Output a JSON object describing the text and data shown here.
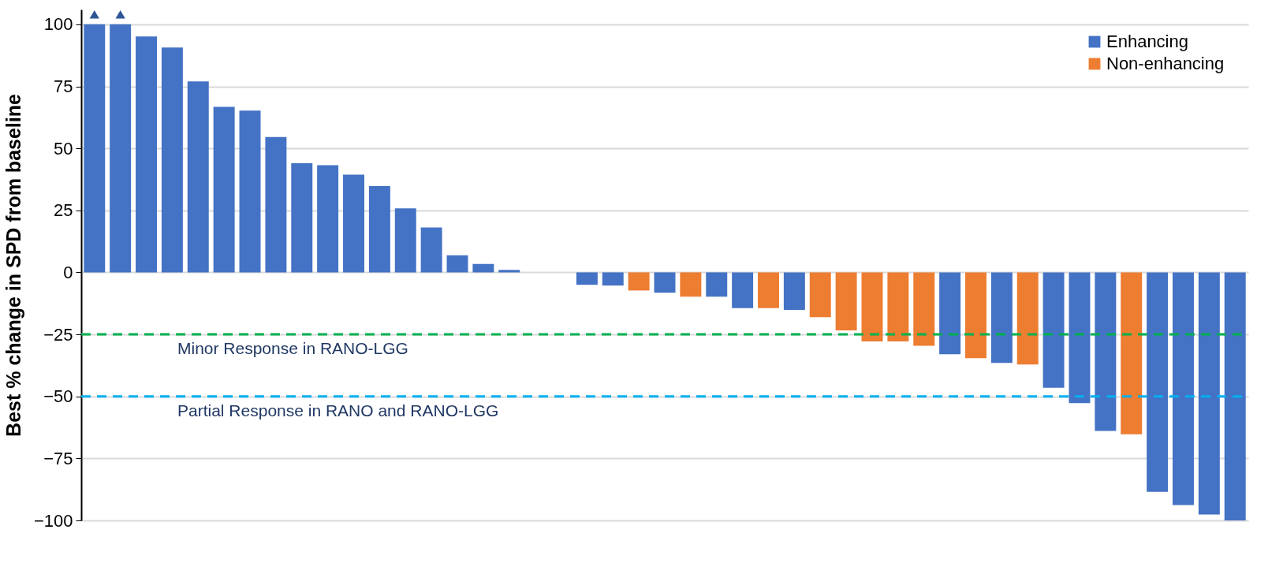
{
  "chart_data": {
    "type": "bar",
    "ylabel": "Best % change in SPD from baseline",
    "categories": [
      null,
      null,
      null,
      null,
      null,
      null,
      null,
      null,
      null,
      null,
      null,
      null,
      null,
      null,
      null,
      null,
      null,
      null,
      null,
      null,
      null,
      null,
      null,
      null,
      null,
      null,
      null,
      null,
      null,
      null,
      null,
      null,
      null,
      null,
      null,
      null,
      null,
      null,
      null,
      null,
      null,
      null,
      null,
      null,
      null
    ],
    "series": [
      {
        "name": "Enhancing",
        "color": "#4472c4",
        "values": [
          100,
          100,
          95.1,
          90.7,
          77,
          66.7,
          65.2,
          54.6,
          44,
          43.2,
          39.4,
          34.8,
          25.8,
          18.1,
          6.9,
          3.4,
          1.0,
          null,
          null,
          -5.0,
          -5.3,
          null,
          -8.2,
          null,
          -9.8,
          -14.4,
          null,
          -15.1,
          null,
          null,
          null,
          null,
          null,
          -33,
          null,
          -36.5,
          null,
          -46.5,
          -52.7,
          -63.9,
          null,
          -88.5,
          -93.8,
          -97.6,
          -100
        ]
      },
      {
        "name": "Non-enhancing",
        "color": "#ed7d31",
        "values": [
          null,
          null,
          null,
          null,
          null,
          null,
          null,
          null,
          null,
          null,
          null,
          null,
          null,
          null,
          null,
          null,
          null,
          null,
          null,
          null,
          null,
          -7.3,
          null,
          -9.8,
          null,
          null,
          -14.4,
          null,
          -18.1,
          -23.4,
          -27.8,
          -27.8,
          -29.6,
          null,
          -34.6,
          null,
          -37.1,
          null,
          null,
          null,
          -65.3,
          null,
          null,
          null,
          null
        ]
      },
      {
        "type": "scatter",
        "marker": "triangle",
        "color": "#2f5597",
        "values": [
          104,
          104,
          null,
          null,
          null,
          null,
          null,
          null,
          null,
          null,
          null,
          null,
          null,
          null,
          null,
          null,
          null,
          null,
          null,
          null,
          null,
          null,
          null,
          null,
          null,
          null,
          null,
          null,
          null,
          null,
          null,
          null,
          null,
          null,
          null,
          null,
          null,
          null,
          null,
          null,
          null,
          null,
          null,
          null,
          null
        ]
      }
    ],
    "ylim": [
      -100,
      106
    ],
    "yticks": [
      -100,
      -75,
      -50,
      -25,
      0,
      25,
      50,
      75,
      100
    ],
    "grid": "y",
    "legend": "top right",
    "ref_lines": [
      {
        "axis": "y",
        "value": -25,
        "label": "Minor Response in RANO-LGG",
        "color": "#00b050",
        "line_style": "dashed"
      },
      {
        "axis": "y",
        "value": -50,
        "label": "Partial Response in RANO and RANO-LGG",
        "color": "#00b0f0",
        "line_style": "dashed"
      }
    ]
  }
}
